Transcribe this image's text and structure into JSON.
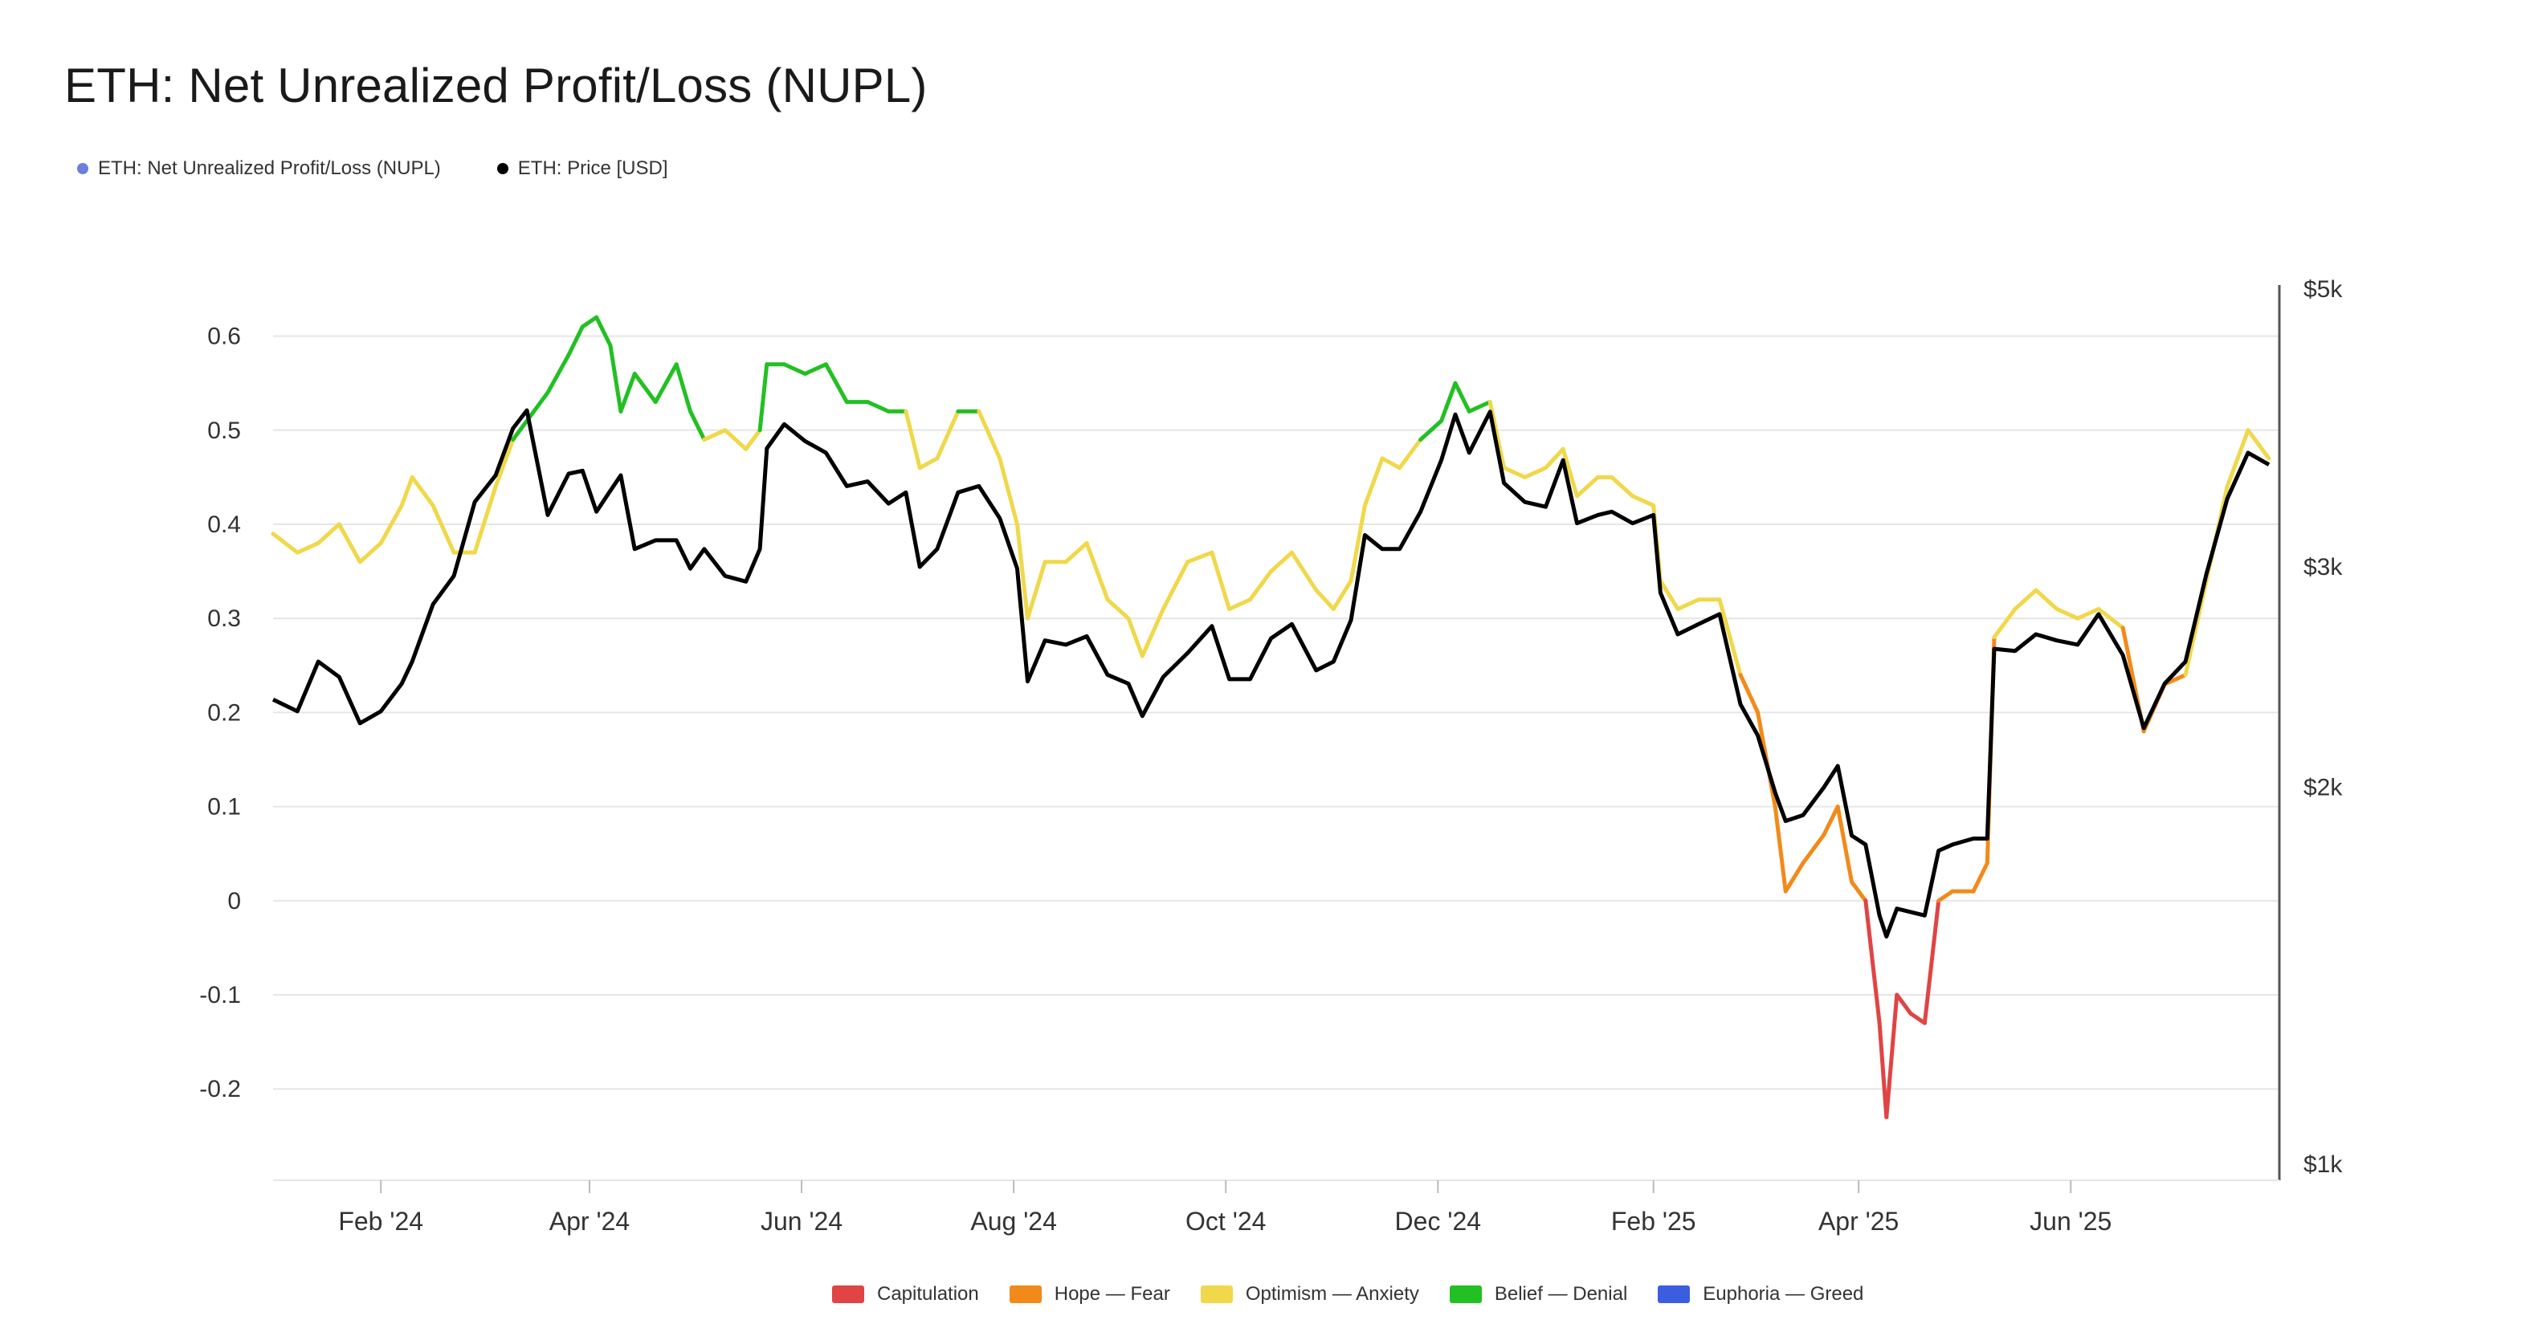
{
  "title": "ETH: Net Unrealized Profit/Loss (NUPL)",
  "top_legend": [
    {
      "label": "ETH: Net Unrealized Profit/Loss (NUPL)",
      "color": "#6b7fdb"
    },
    {
      "label": "ETH: Price [USD]",
      "color": "#000000"
    }
  ],
  "bottom_legend": [
    {
      "label": "Capitulation",
      "color": "#e04444"
    },
    {
      "label": "Hope — Fear",
      "color": "#f28a1a"
    },
    {
      "label": "Optimism — Anxiety",
      "color": "#f0d84a"
    },
    {
      "label": "Belief — Denial",
      "color": "#22c022"
    },
    {
      "label": "Euphoria — Greed",
      "color": "#3b5ee0"
    }
  ],
  "chart_data": {
    "type": "line",
    "xlabel": "",
    "ylabel": "",
    "x_tick_labels": [
      "Feb '24",
      "Apr '24",
      "Jun '24",
      "Aug '24",
      "Oct '24",
      "Dec '24",
      "Feb '25",
      "Apr '25",
      "Jun '25"
    ],
    "y_left": {
      "ticks": [
        -0.2,
        -0.1,
        0,
        0.1,
        0.2,
        0.3,
        0.4,
        0.5,
        0.6
      ],
      "tick_labels": [
        "-0.2",
        "-0.1",
        "0",
        "0.1",
        "0.2",
        "0.3",
        "0.4",
        "0.5",
        "0.6"
      ],
      "range": [
        -0.28,
        0.65
      ]
    },
    "y_right": {
      "scale": "log",
      "ticks": [
        1000,
        2000,
        3000,
        5000
      ],
      "tick_labels": [
        "$1k",
        "$2k",
        "$3k",
        "$5k"
      ],
      "range": [
        1000,
        5000
      ]
    },
    "x_range": [
      "2024-01-01",
      "2025-07-31"
    ],
    "grid": true,
    "zone_thresholds": {
      "capitulation_below": 0,
      "hope_fear_below": 0.25,
      "optimism_anxiety_below": 0.5,
      "belief_denial_below": 0.75
    },
    "series": [
      {
        "name": "ETH: Net Unrealized Profit/Loss (NUPL)",
        "axis": "left",
        "points": [
          [
            "2024-01-01",
            0.39
          ],
          [
            "2024-01-08",
            0.37
          ],
          [
            "2024-01-14",
            0.38
          ],
          [
            "2024-01-20",
            0.4
          ],
          [
            "2024-01-26",
            0.36
          ],
          [
            "2024-02-01",
            0.38
          ],
          [
            "2024-02-07",
            0.42
          ],
          [
            "2024-02-10",
            0.45
          ],
          [
            "2024-02-16",
            0.42
          ],
          [
            "2024-02-22",
            0.37
          ],
          [
            "2024-02-28",
            0.37
          ],
          [
            "2024-03-05",
            0.44
          ],
          [
            "2024-03-10",
            0.49
          ],
          [
            "2024-03-14",
            0.51
          ],
          [
            "2024-03-20",
            0.54
          ],
          [
            "2024-03-26",
            0.58
          ],
          [
            "2024-03-30",
            0.61
          ],
          [
            "2024-04-03",
            0.62
          ],
          [
            "2024-04-07",
            0.59
          ],
          [
            "2024-04-10",
            0.52
          ],
          [
            "2024-04-14",
            0.56
          ],
          [
            "2024-04-20",
            0.53
          ],
          [
            "2024-04-26",
            0.57
          ],
          [
            "2024-04-30",
            0.52
          ],
          [
            "2024-05-04",
            0.49
          ],
          [
            "2024-05-10",
            0.5
          ],
          [
            "2024-05-16",
            0.48
          ],
          [
            "2024-05-20",
            0.5
          ],
          [
            "2024-05-22",
            0.57
          ],
          [
            "2024-05-27",
            0.57
          ],
          [
            "2024-06-02",
            0.56
          ],
          [
            "2024-06-08",
            0.57
          ],
          [
            "2024-06-14",
            0.53
          ],
          [
            "2024-06-20",
            0.53
          ],
          [
            "2024-06-26",
            0.52
          ],
          [
            "2024-07-01",
            0.52
          ],
          [
            "2024-07-05",
            0.46
          ],
          [
            "2024-07-10",
            0.47
          ],
          [
            "2024-07-16",
            0.52
          ],
          [
            "2024-07-22",
            0.52
          ],
          [
            "2024-07-28",
            0.47
          ],
          [
            "2024-08-02",
            0.4
          ],
          [
            "2024-08-05",
            0.3
          ],
          [
            "2024-08-10",
            0.36
          ],
          [
            "2024-08-16",
            0.36
          ],
          [
            "2024-08-22",
            0.38
          ],
          [
            "2024-08-28",
            0.32
          ],
          [
            "2024-09-03",
            0.3
          ],
          [
            "2024-09-07",
            0.26
          ],
          [
            "2024-09-13",
            0.31
          ],
          [
            "2024-09-20",
            0.36
          ],
          [
            "2024-09-27",
            0.37
          ],
          [
            "2024-10-02",
            0.31
          ],
          [
            "2024-10-08",
            0.32
          ],
          [
            "2024-10-14",
            0.35
          ],
          [
            "2024-10-20",
            0.37
          ],
          [
            "2024-10-27",
            0.33
          ],
          [
            "2024-11-01",
            0.31
          ],
          [
            "2024-11-06",
            0.34
          ],
          [
            "2024-11-10",
            0.42
          ],
          [
            "2024-11-15",
            0.47
          ],
          [
            "2024-11-20",
            0.46
          ],
          [
            "2024-11-26",
            0.49
          ],
          [
            "2024-12-02",
            0.51
          ],
          [
            "2024-12-06",
            0.55
          ],
          [
            "2024-12-10",
            0.52
          ],
          [
            "2024-12-16",
            0.53
          ],
          [
            "2024-12-20",
            0.46
          ],
          [
            "2024-12-26",
            0.45
          ],
          [
            "2025-01-01",
            0.46
          ],
          [
            "2025-01-06",
            0.48
          ],
          [
            "2025-01-10",
            0.43
          ],
          [
            "2025-01-16",
            0.45
          ],
          [
            "2025-01-20",
            0.45
          ],
          [
            "2025-01-26",
            0.43
          ],
          [
            "2025-02-01",
            0.42
          ],
          [
            "2025-02-03",
            0.34
          ],
          [
            "2025-02-08",
            0.31
          ],
          [
            "2025-02-14",
            0.32
          ],
          [
            "2025-02-20",
            0.32
          ],
          [
            "2025-02-26",
            0.24
          ],
          [
            "2025-03-03",
            0.2
          ],
          [
            "2025-03-08",
            0.1
          ],
          [
            "2025-03-11",
            0.01
          ],
          [
            "2025-03-16",
            0.04
          ],
          [
            "2025-03-22",
            0.07
          ],
          [
            "2025-03-26",
            0.1
          ],
          [
            "2025-03-30",
            0.02
          ],
          [
            "2025-04-03",
            0.0
          ],
          [
            "2025-04-07",
            -0.13
          ],
          [
            "2025-04-09",
            -0.23
          ],
          [
            "2025-04-12",
            -0.1
          ],
          [
            "2025-04-16",
            -0.12
          ],
          [
            "2025-04-20",
            -0.13
          ],
          [
            "2025-04-24",
            0.0
          ],
          [
            "2025-04-28",
            0.01
          ],
          [
            "2025-05-04",
            0.01
          ],
          [
            "2025-05-08",
            0.04
          ],
          [
            "2025-05-10",
            0.28
          ],
          [
            "2025-05-16",
            0.31
          ],
          [
            "2025-05-22",
            0.33
          ],
          [
            "2025-05-28",
            0.31
          ],
          [
            "2025-06-03",
            0.3
          ],
          [
            "2025-06-09",
            0.31
          ],
          [
            "2025-06-16",
            0.29
          ],
          [
            "2025-06-22",
            0.18
          ],
          [
            "2025-06-28",
            0.23
          ],
          [
            "2025-07-04",
            0.24
          ],
          [
            "2025-07-10",
            0.34
          ],
          [
            "2025-07-16",
            0.44
          ],
          [
            "2025-07-22",
            0.5
          ],
          [
            "2025-07-28",
            0.47
          ]
        ]
      },
      {
        "name": "ETH: Price [USD]",
        "axis": "right",
        "color": "#000000",
        "points": [
          [
            "2024-01-01",
            2350
          ],
          [
            "2024-01-08",
            2300
          ],
          [
            "2024-01-14",
            2520
          ],
          [
            "2024-01-20",
            2450
          ],
          [
            "2024-01-26",
            2250
          ],
          [
            "2024-02-01",
            2300
          ],
          [
            "2024-02-07",
            2420
          ],
          [
            "2024-02-10",
            2520
          ],
          [
            "2024-02-16",
            2800
          ],
          [
            "2024-02-22",
            2950
          ],
          [
            "2024-02-28",
            3380
          ],
          [
            "2024-03-05",
            3550
          ],
          [
            "2024-03-10",
            3870
          ],
          [
            "2024-03-14",
            4000
          ],
          [
            "2024-03-20",
            3300
          ],
          [
            "2024-03-26",
            3560
          ],
          [
            "2024-03-30",
            3580
          ],
          [
            "2024-04-03",
            3320
          ],
          [
            "2024-04-07",
            3450
          ],
          [
            "2024-04-10",
            3550
          ],
          [
            "2024-04-14",
            3100
          ],
          [
            "2024-04-20",
            3150
          ],
          [
            "2024-04-26",
            3150
          ],
          [
            "2024-04-30",
            2990
          ],
          [
            "2024-05-04",
            3100
          ],
          [
            "2024-05-10",
            2950
          ],
          [
            "2024-05-16",
            2920
          ],
          [
            "2024-05-20",
            3100
          ],
          [
            "2024-05-22",
            3730
          ],
          [
            "2024-05-27",
            3900
          ],
          [
            "2024-06-02",
            3780
          ],
          [
            "2024-06-08",
            3700
          ],
          [
            "2024-06-14",
            3480
          ],
          [
            "2024-06-20",
            3510
          ],
          [
            "2024-06-26",
            3370
          ],
          [
            "2024-07-01",
            3440
          ],
          [
            "2024-07-05",
            3000
          ],
          [
            "2024-07-10",
            3100
          ],
          [
            "2024-07-16",
            3440
          ],
          [
            "2024-07-22",
            3480
          ],
          [
            "2024-07-28",
            3280
          ],
          [
            "2024-08-02",
            2990
          ],
          [
            "2024-08-05",
            2430
          ],
          [
            "2024-08-10",
            2620
          ],
          [
            "2024-08-16",
            2600
          ],
          [
            "2024-08-22",
            2640
          ],
          [
            "2024-08-28",
            2460
          ],
          [
            "2024-09-03",
            2420
          ],
          [
            "2024-09-07",
            2280
          ],
          [
            "2024-09-13",
            2450
          ],
          [
            "2024-09-20",
            2560
          ],
          [
            "2024-09-27",
            2690
          ],
          [
            "2024-10-02",
            2440
          ],
          [
            "2024-10-08",
            2440
          ],
          [
            "2024-10-14",
            2630
          ],
          [
            "2024-10-20",
            2700
          ],
          [
            "2024-10-27",
            2480
          ],
          [
            "2024-11-01",
            2520
          ],
          [
            "2024-11-06",
            2720
          ],
          [
            "2024-11-10",
            3180
          ],
          [
            "2024-11-15",
            3100
          ],
          [
            "2024-11-20",
            3100
          ],
          [
            "2024-11-26",
            3320
          ],
          [
            "2024-12-02",
            3650
          ],
          [
            "2024-12-06",
            3970
          ],
          [
            "2024-12-10",
            3700
          ],
          [
            "2024-12-16",
            3990
          ],
          [
            "2024-12-20",
            3500
          ],
          [
            "2024-12-26",
            3380
          ],
          [
            "2025-01-01",
            3350
          ],
          [
            "2025-01-06",
            3650
          ],
          [
            "2025-01-10",
            3250
          ],
          [
            "2025-01-16",
            3300
          ],
          [
            "2025-01-20",
            3320
          ],
          [
            "2025-01-26",
            3250
          ],
          [
            "2025-02-01",
            3300
          ],
          [
            "2025-02-03",
            2860
          ],
          [
            "2025-02-08",
            2650
          ],
          [
            "2025-02-14",
            2700
          ],
          [
            "2025-02-20",
            2750
          ],
          [
            "2025-02-26",
            2330
          ],
          [
            "2025-03-03",
            2200
          ],
          [
            "2025-03-08",
            1980
          ],
          [
            "2025-03-11",
            1880
          ],
          [
            "2025-03-16",
            1900
          ],
          [
            "2025-03-22",
            2000
          ],
          [
            "2025-03-26",
            2080
          ],
          [
            "2025-03-30",
            1830
          ],
          [
            "2025-04-03",
            1800
          ],
          [
            "2025-04-07",
            1580
          ],
          [
            "2025-04-09",
            1520
          ],
          [
            "2025-04-12",
            1600
          ],
          [
            "2025-04-16",
            1590
          ],
          [
            "2025-04-20",
            1580
          ],
          [
            "2025-04-24",
            1780
          ],
          [
            "2025-04-28",
            1800
          ],
          [
            "2025-05-04",
            1820
          ],
          [
            "2025-05-08",
            1820
          ],
          [
            "2025-05-10",
            2580
          ],
          [
            "2025-05-16",
            2570
          ],
          [
            "2025-05-22",
            2650
          ],
          [
            "2025-05-28",
            2620
          ],
          [
            "2025-06-03",
            2600
          ],
          [
            "2025-06-09",
            2750
          ],
          [
            "2025-06-16",
            2550
          ],
          [
            "2025-06-22",
            2230
          ],
          [
            "2025-06-28",
            2420
          ],
          [
            "2025-07-04",
            2520
          ],
          [
            "2025-07-10",
            2960
          ],
          [
            "2025-07-16",
            3400
          ],
          [
            "2025-07-22",
            3700
          ],
          [
            "2025-07-28",
            3620
          ]
        ]
      }
    ]
  }
}
